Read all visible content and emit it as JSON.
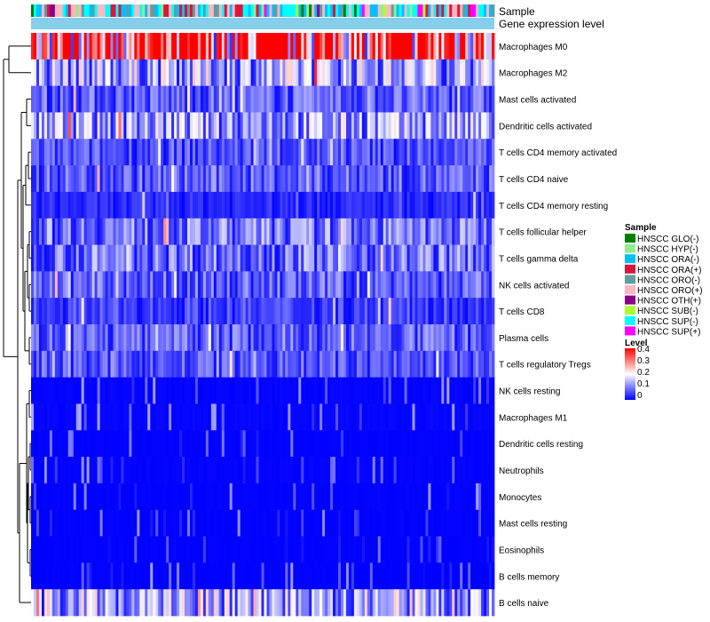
{
  "chart_data": {
    "type": "heatmap",
    "title": "",
    "annotation_tracks": [
      "Sample",
      "Gene expression level"
    ],
    "rows": [
      {
        "label": "Macrophages M0",
        "mean": 0.34
      },
      {
        "label": "Macrophages M2",
        "mean": 0.13
      },
      {
        "label": "Mast cells activated",
        "mean": 0.07
      },
      {
        "label": "Dendritic cells activated",
        "mean": 0.12
      },
      {
        "label": "T cells CD4 memory activated",
        "mean": 0.06
      },
      {
        "label": "T cells CD4 naive",
        "mean": 0.07
      },
      {
        "label": "T cells CD4 memory resting",
        "mean": 0.03
      },
      {
        "label": "T cells follicular helper",
        "mean": 0.09
      },
      {
        "label": "T cells gamma delta",
        "mean": 0.09
      },
      {
        "label": "NK cells activated",
        "mean": 0.07
      },
      {
        "label": "T cells CD8",
        "mean": 0.05
      },
      {
        "label": "Plasma cells",
        "mean": 0.07
      },
      {
        "label": "T cells regulatory  Tregs",
        "mean": 0.06
      },
      {
        "label": "NK cells resting",
        "mean": 0.02
      },
      {
        "label": "Macrophages M1",
        "mean": 0.025
      },
      {
        "label": "Dendritic cells resting",
        "mean": 0.01
      },
      {
        "label": "Neutrophils",
        "mean": 0.015
      },
      {
        "label": "Monocytes",
        "mean": 0.01
      },
      {
        "label": "Mast cells resting",
        "mean": 0.01
      },
      {
        "label": "Eosinophils",
        "mean": 0.008
      },
      {
        "label": "B cells memory",
        "mean": 0.006
      },
      {
        "label": "B cells naive",
        "mean": 0.13
      }
    ],
    "legend_sample": {
      "title": "Sample",
      "entries": [
        {
          "label": "HNSCC GLO(-)",
          "color": "#008000"
        },
        {
          "label": "HNSCC HYP(-)",
          "color": "#90ee90"
        },
        {
          "label": "HNSCC ORA(-)",
          "color": "#00bfff"
        },
        {
          "label": "HNSCC ORA(+)",
          "color": "#dc143c"
        },
        {
          "label": "HNSCC ORO(-)",
          "color": "#5f9ea0"
        },
        {
          "label": "HNSCC ORO(+)",
          "color": "#ffb6c1"
        },
        {
          "label": "HNSCC OTH(+)",
          "color": "#8b008b"
        },
        {
          "label": "HNSCC SUB(-)",
          "color": "#adff2f"
        },
        {
          "label": "HNSCC SUP(-)",
          "color": "#00ffff"
        },
        {
          "label": "HNSCC SUP(+)",
          "color": "#ff00ff"
        }
      ]
    },
    "legend_level": {
      "title": "Level",
      "ticks": [
        "0.4",
        "0.3",
        "0.2",
        "0.1",
        "0"
      ],
      "range": [
        0,
        0.4
      ],
      "colors": {
        "low": "#0000ff",
        "mid": "#ffffff",
        "high": "#ff0000"
      }
    },
    "expression_track_color": "#87ceeb"
  }
}
